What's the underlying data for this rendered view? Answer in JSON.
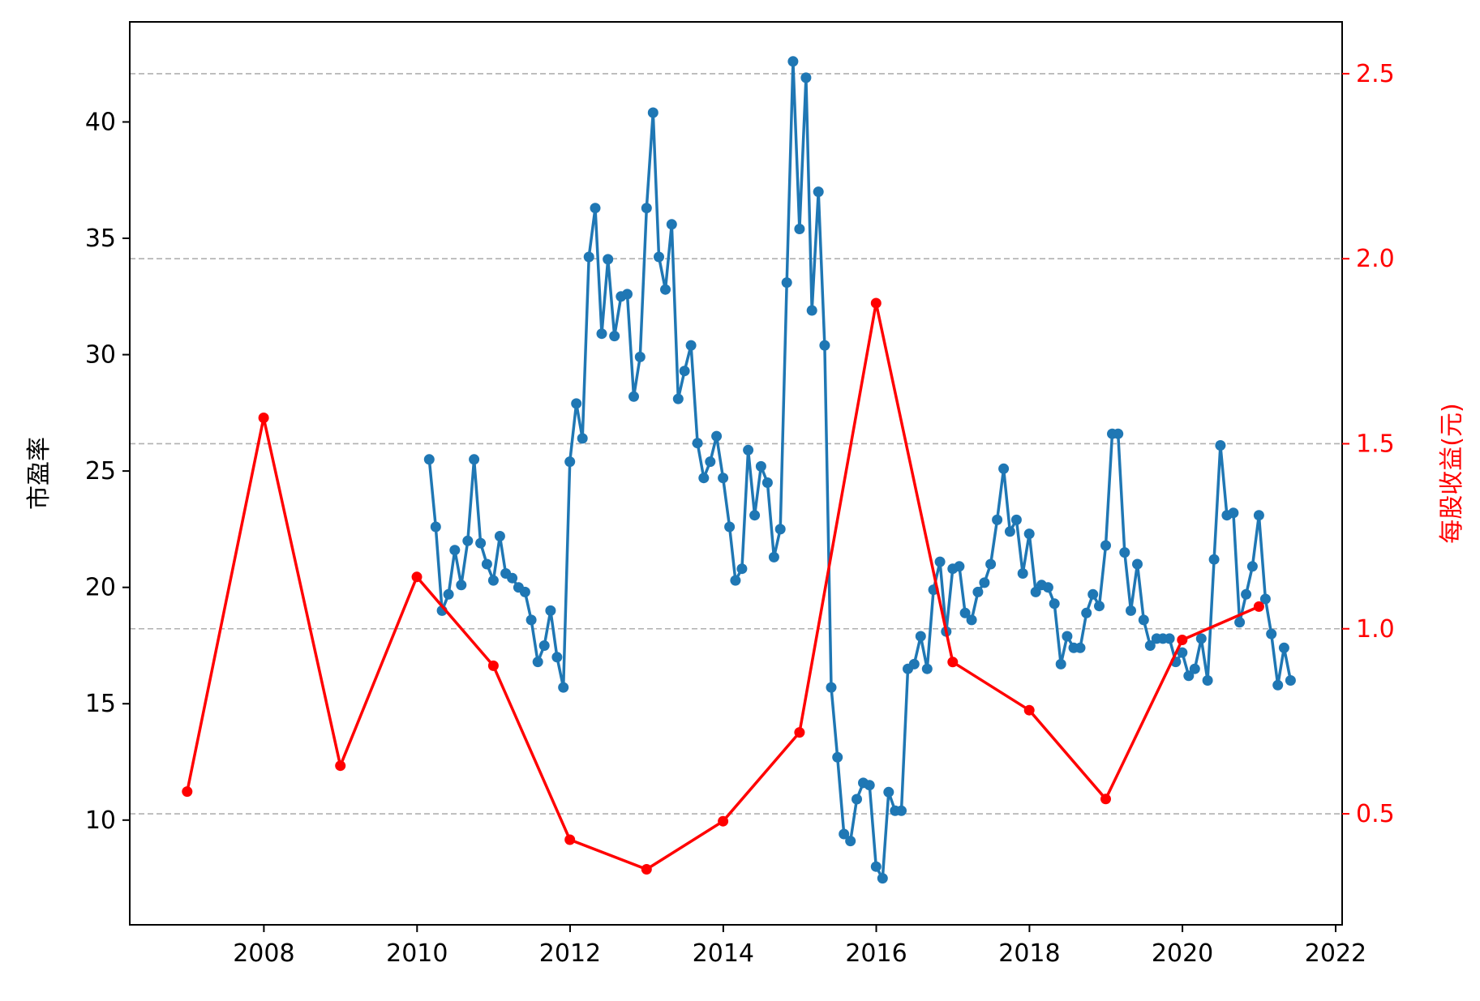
{
  "chart_data": {
    "type": "line",
    "title": "",
    "xlabel": "",
    "ylabel_left": "市盈率",
    "ylabel_right": "每股收益(元)",
    "colors": {
      "pe": "#1f77b4",
      "eps": "#ff0000",
      "grid": "#b0b0b0",
      "right_axis": "#ff0000"
    },
    "xlim": [
      "2006-04-01",
      "2022-02-01"
    ],
    "ylim_left": [
      5.5,
      44.3
    ],
    "ylim_right": [
      0.2,
      2.64
    ],
    "x_ticks": [
      "2008",
      "2010",
      "2012",
      "2014",
      "2016",
      "2018",
      "2020",
      "2022"
    ],
    "y_ticks_left": [
      "10",
      "15",
      "20",
      "25",
      "30",
      "35",
      "40"
    ],
    "y_ticks_right": [
      "0.5",
      "1.0",
      "1.5",
      "2.0",
      "2.5"
    ],
    "grid": "horizontal dashed at right-axis ticks",
    "legend": "none",
    "series": [
      {
        "key": "pe",
        "axis": "left",
        "x": [
          "2010-02-28",
          "2010-03-31",
          "2010-04-30",
          "2010-05-31",
          "2010-06-30",
          "2010-07-31",
          "2010-08-31",
          "2010-09-30",
          "2010-10-31",
          "2010-11-30",
          "2010-12-31",
          "2011-01-31",
          "2011-02-28",
          "2011-03-31",
          "2011-04-30",
          "2011-05-31",
          "2011-06-30",
          "2011-07-31",
          "2011-08-31",
          "2011-09-30",
          "2011-10-31",
          "2011-11-30",
          "2011-12-31",
          "2012-01-31",
          "2012-02-29",
          "2012-03-31",
          "2012-04-30",
          "2012-05-31",
          "2012-06-30",
          "2012-07-31",
          "2012-08-31",
          "2012-09-30",
          "2012-10-31",
          "2012-11-30",
          "2012-12-31",
          "2013-01-31",
          "2013-02-28",
          "2013-03-31",
          "2013-04-30",
          "2013-05-31",
          "2013-06-30",
          "2013-07-31",
          "2013-08-31",
          "2013-09-30",
          "2013-10-31",
          "2013-11-30",
          "2013-12-31",
          "2014-01-31",
          "2014-02-28",
          "2014-03-31",
          "2014-04-30",
          "2014-05-31",
          "2014-06-30",
          "2014-07-31",
          "2014-08-31",
          "2014-09-30",
          "2014-10-31",
          "2014-11-30",
          "2014-12-31",
          "2015-01-31",
          "2015-02-28",
          "2015-03-31",
          "2015-04-30",
          "2015-05-31",
          "2015-06-30",
          "2015-07-31",
          "2015-08-31",
          "2015-09-30",
          "2015-10-31",
          "2015-11-30",
          "2015-12-31",
          "2016-01-31",
          "2016-02-29",
          "2016-03-31",
          "2016-04-30",
          "2016-05-31",
          "2016-06-30",
          "2016-07-31",
          "2016-08-31",
          "2016-09-30",
          "2016-10-31",
          "2016-11-30",
          "2016-12-31",
          "2017-01-31",
          "2017-02-28",
          "2017-03-31",
          "2017-04-30",
          "2017-05-31",
          "2017-06-30",
          "2017-07-31",
          "2017-08-31",
          "2017-09-30",
          "2017-10-31",
          "2017-11-30",
          "2017-12-31",
          "2018-01-31",
          "2018-02-28",
          "2018-03-31",
          "2018-04-30",
          "2018-05-31",
          "2018-06-30",
          "2018-07-31",
          "2018-08-31",
          "2018-09-30",
          "2018-10-31",
          "2018-11-30",
          "2018-12-31",
          "2019-01-31",
          "2019-02-28",
          "2019-03-31",
          "2019-04-30",
          "2019-05-31",
          "2019-06-30",
          "2019-07-31",
          "2019-08-31",
          "2019-09-30",
          "2019-10-31",
          "2019-11-30",
          "2019-12-31",
          "2020-01-31",
          "2020-02-29",
          "2020-03-31",
          "2020-04-30",
          "2020-05-31",
          "2020-06-30",
          "2020-07-31",
          "2020-08-31",
          "2020-09-30",
          "2020-10-31",
          "2020-11-30",
          "2020-12-31",
          "2021-01-31",
          "2021-02-28",
          "2021-03-31",
          "2021-04-30",
          "2021-05-31"
        ],
        "values": [
          25.5,
          22.6,
          19.0,
          19.7,
          21.6,
          20.1,
          22.0,
          25.5,
          21.9,
          21.0,
          20.3,
          22.2,
          20.6,
          20.4,
          20.0,
          19.8,
          18.6,
          16.8,
          17.5,
          19.0,
          17.0,
          15.7,
          25.4,
          27.9,
          26.4,
          34.2,
          36.3,
          30.9,
          34.1,
          30.8,
          32.5,
          32.6,
          28.2,
          29.9,
          36.3,
          40.4,
          34.2,
          32.8,
          35.6,
          28.1,
          29.3,
          30.4,
          26.2,
          24.7,
          25.4,
          26.5,
          24.7,
          22.6,
          20.3,
          20.8,
          25.9,
          23.1,
          25.2,
          24.5,
          21.3,
          22.5,
          33.1,
          42.6,
          35.4,
          41.9,
          31.9,
          37.0,
          30.4,
          15.7,
          12.7,
          9.4,
          9.1,
          10.9,
          11.6,
          11.5,
          8.0,
          7.5,
          11.2,
          10.4,
          10.4,
          16.5,
          16.7,
          17.9,
          16.5,
          19.9,
          21.1,
          18.1,
          20.8,
          20.9,
          18.9,
          18.6,
          19.8,
          20.2,
          21.0,
          22.9,
          25.1,
          22.4,
          22.9,
          20.6,
          22.3,
          19.8,
          20.1,
          20.0,
          19.3,
          16.7,
          17.9,
          17.4,
          17.4,
          18.9,
          19.7,
          19.2,
          21.8,
          26.6,
          26.6,
          21.5,
          19.0,
          21.0,
          18.6,
          17.5,
          17.8,
          17.8,
          17.8,
          16.8,
          17.2,
          16.2,
          16.5,
          17.8,
          16.0,
          21.2,
          26.1,
          23.1,
          23.2,
          18.5,
          19.7,
          20.9,
          23.1,
          19.5,
          18.0,
          15.8,
          17.4,
          16.0
        ]
      },
      {
        "key": "eps",
        "axis": "right",
        "x": [
          "2006-12-31",
          "2007-12-31",
          "2008-12-31",
          "2009-12-31",
          "2010-12-31",
          "2011-12-31",
          "2012-12-31",
          "2013-12-31",
          "2014-12-31",
          "2015-12-31",
          "2016-12-31",
          "2017-12-31",
          "2018-12-31",
          "2019-12-31",
          "2020-12-31"
        ],
        "values": [
          0.56,
          1.57,
          0.63,
          1.14,
          0.9,
          0.43,
          0.35,
          0.48,
          0.72,
          1.88,
          0.91,
          0.78,
          0.54,
          0.97,
          1.06
        ]
      }
    ]
  }
}
